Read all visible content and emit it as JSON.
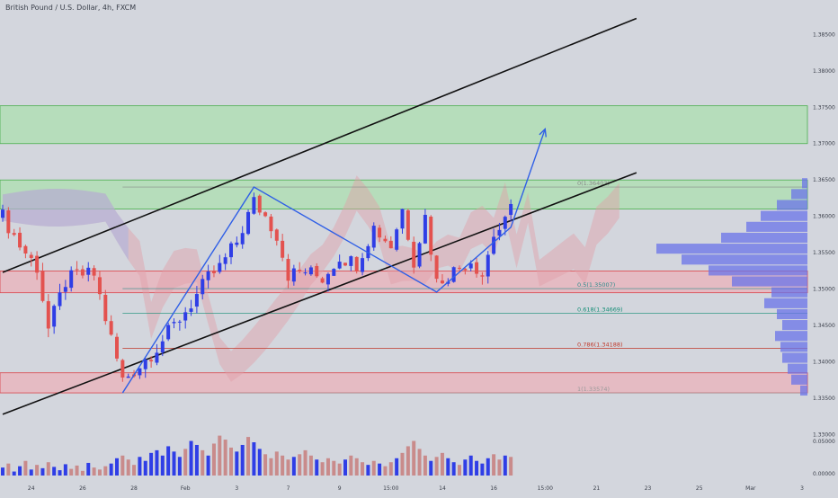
{
  "header": {
    "title": "British Pound / U.S. Dollar, 4h, FXCM"
  },
  "colors": {
    "background": "#d3d6dd",
    "bull": "#2f3ee6",
    "bear": "#e3524f",
    "green_zone": "#9fe39f",
    "red_zone": "#f4a6ad",
    "channel": "#111111",
    "pattern": "#2f5fe6",
    "cloud_red": "#e0a0a8",
    "cloud_blue": "#9fb2e8"
  },
  "chart_data": {
    "type": "candlestick",
    "symbol": "British Pound / U.S. Dollar",
    "interval": "4h",
    "source": "FXCM",
    "x_ticks": [
      "24",
      "26",
      "28",
      "Feb",
      "3",
      "7",
      "9",
      "15:00",
      "14",
      "16",
      "15:00",
      "21",
      "23",
      "25",
      "Mar",
      "3"
    ],
    "y_ticks": [
      "1.38500",
      "1.38000",
      "1.37500",
      "1.37000",
      "1.36500",
      "1.36000",
      "1.35500",
      "1.35000",
      "1.34500",
      "1.34000",
      "1.33500",
      "1.33000"
    ],
    "volume_ticks": [
      "0.05000",
      "0.00000"
    ],
    "ylim": [
      1.3292,
      1.3885
    ],
    "zones": [
      {
        "name": "supply-upper",
        "from": 1.37,
        "to": 1.3752,
        "kind": "green"
      },
      {
        "name": "supply-lower",
        "from": 1.361,
        "to": 1.365,
        "kind": "green"
      },
      {
        "name": "demand-upper",
        "from": 1.3495,
        "to": 1.3525,
        "kind": "red"
      },
      {
        "name": "demand-lower",
        "from": 1.33574,
        "to": 1.3385,
        "kind": "red"
      }
    ],
    "fib_levels": [
      {
        "label": "0(1.36403)",
        "price": 1.36403
      },
      {
        "label": "0.5(1.35007)",
        "price": 1.35007
      },
      {
        "label": "0.618(1.34669)",
        "price": 1.34669
      },
      {
        "label": "0.786(1.34188)",
        "price": 1.34188
      },
      {
        "label": "1(1.33574)",
        "price": 1.33574
      }
    ],
    "channel_lines": [
      {
        "from": {
          "bar": 0,
          "price": 1.3523
        },
        "to": {
          "bar": 111,
          "price": 1.3872
        }
      },
      {
        "from": {
          "bar": 0,
          "price": 1.3328
        },
        "to": {
          "bar": 111,
          "price": 1.366
        }
      }
    ],
    "pattern_points": [
      {
        "bar": 21,
        "price": 1.33574
      },
      {
        "bar": 44,
        "price": 1.36403
      },
      {
        "bar": 76,
        "price": 1.3496
      },
      {
        "bar": 89,
        "price": 1.3585
      },
      {
        "bar": 95,
        "price": 1.372
      }
    ],
    "anchor_closes": [
      {
        "bar": 0,
        "price": 1.36
      },
      {
        "bar": 3,
        "price": 1.356
      },
      {
        "bar": 6,
        "price": 1.353
      },
      {
        "bar": 8,
        "price": 1.3445
      },
      {
        "bar": 11,
        "price": 1.351
      },
      {
        "bar": 13,
        "price": 1.352
      },
      {
        "bar": 16,
        "price": 1.352
      },
      {
        "bar": 18,
        "price": 1.346
      },
      {
        "bar": 21,
        "price": 1.3375
      },
      {
        "bar": 24,
        "price": 1.3395
      },
      {
        "bar": 27,
        "price": 1.342
      },
      {
        "bar": 30,
        "price": 1.345
      },
      {
        "bar": 33,
        "price": 1.348
      },
      {
        "bar": 36,
        "price": 1.3515
      },
      {
        "bar": 38,
        "price": 1.353
      },
      {
        "bar": 41,
        "price": 1.3565
      },
      {
        "bar": 44,
        "price": 1.362
      },
      {
        "bar": 46,
        "price": 1.36
      },
      {
        "bar": 48,
        "price": 1.3575
      },
      {
        "bar": 50,
        "price": 1.352
      },
      {
        "bar": 53,
        "price": 1.3525
      },
      {
        "bar": 56,
        "price": 1.3515
      },
      {
        "bar": 59,
        "price": 1.3545
      },
      {
        "bar": 62,
        "price": 1.3535
      },
      {
        "bar": 65,
        "price": 1.3585
      },
      {
        "bar": 68,
        "price": 1.356
      },
      {
        "bar": 70,
        "price": 1.361
      },
      {
        "bar": 72,
        "price": 1.354
      },
      {
        "bar": 74,
        "price": 1.36
      },
      {
        "bar": 76,
        "price": 1.351
      },
      {
        "bar": 79,
        "price": 1.3525
      },
      {
        "bar": 82,
        "price": 1.354
      },
      {
        "bar": 84,
        "price": 1.352
      },
      {
        "bar": 86,
        "price": 1.3575
      },
      {
        "bar": 88,
        "price": 1.359
      },
      {
        "bar": 89,
        "price": 1.361
      }
    ],
    "volume_by_bar": [
      12,
      18,
      6,
      14,
      22,
      9,
      16,
      11,
      20,
      13,
      8,
      17,
      10,
      15,
      7,
      19,
      12,
      9,
      14,
      18,
      26,
      30,
      24,
      16,
      28,
      22,
      34,
      38,
      30,
      44,
      36,
      28,
      40,
      52,
      46,
      38,
      30,
      48,
      60,
      54,
      42,
      36,
      46,
      58,
      50,
      40,
      32,
      26,
      36,
      30,
      24,
      28,
      32,
      38,
      30,
      24,
      20,
      26,
      22,
      18,
      24,
      30,
      26,
      20,
      16,
      22,
      18,
      14,
      20,
      26,
      34,
      44,
      52,
      40,
      30,
      22,
      28,
      34,
      26,
      20,
      16,
      24,
      30,
      22,
      18,
      26,
      32,
      24,
      30,
      28
    ],
    "volume_profile": [
      {
        "price": 1.3645,
        "volume": 6
      },
      {
        "price": 1.363,
        "volume": 18
      },
      {
        "price": 1.3615,
        "volume": 34
      },
      {
        "price": 1.36,
        "volume": 52
      },
      {
        "price": 1.3585,
        "volume": 68
      },
      {
        "price": 1.357,
        "volume": 96
      },
      {
        "price": 1.3555,
        "volume": 168
      },
      {
        "price": 1.354,
        "volume": 140
      },
      {
        "price": 1.3525,
        "volume": 110
      },
      {
        "price": 1.351,
        "volume": 84
      },
      {
        "price": 1.3495,
        "volume": 40
      },
      {
        "price": 1.348,
        "volume": 48
      },
      {
        "price": 1.3465,
        "volume": 34
      },
      {
        "price": 1.345,
        "volume": 28
      },
      {
        "price": 1.3435,
        "volume": 36
      },
      {
        "price": 1.342,
        "volume": 30
      },
      {
        "price": 1.3405,
        "volume": 28
      },
      {
        "price": 1.339,
        "volume": 22
      },
      {
        "price": 1.3375,
        "volume": 18
      },
      {
        "price": 1.336,
        "volume": 8
      }
    ]
  }
}
